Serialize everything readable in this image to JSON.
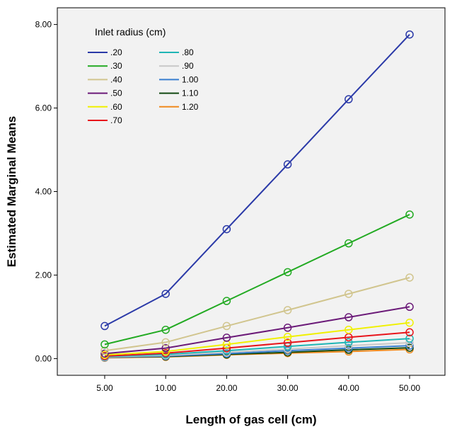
{
  "chart_data": {
    "type": "line",
    "xlabel": "Length of gas cell (cm)",
    "ylabel": "Estimated Marginal Means",
    "categories": [
      "5.00",
      "10.00",
      "20.00",
      "30.00",
      "40.00",
      "50.00"
    ],
    "ylim": [
      -0.4,
      8.4
    ],
    "yticks": [
      "0.00",
      "2.00",
      "4.00",
      "6.00",
      "8.00"
    ],
    "ytick_values": [
      0,
      2,
      4,
      6,
      8
    ],
    "legend_title": "Inlet radius (cm)",
    "legend_position": "top-left",
    "grid": false,
    "marker": "open-circle",
    "background": "#f2f2f2",
    "series": [
      {
        "name": ".20",
        "color": "#2b3aa8",
        "values": [
          0.78,
          1.55,
          3.1,
          4.65,
          6.21,
          7.76
        ]
      },
      {
        "name": ".30",
        "color": "#22aa22",
        "values": [
          0.34,
          0.69,
          1.38,
          2.07,
          2.76,
          3.45
        ]
      },
      {
        "name": ".40",
        "color": "#d1c58e",
        "values": [
          0.19,
          0.39,
          0.78,
          1.16,
          1.55,
          1.94
        ]
      },
      {
        "name": ".50",
        "color": "#6b1a78",
        "values": [
          0.12,
          0.25,
          0.5,
          0.74,
          0.99,
          1.24
        ]
      },
      {
        "name": ".60",
        "color": "#f0f000",
        "values": [
          0.09,
          0.17,
          0.34,
          0.52,
          0.69,
          0.86
        ]
      },
      {
        "name": ".70",
        "color": "#e8151b",
        "values": [
          0.06,
          0.13,
          0.25,
          0.38,
          0.51,
          0.63
        ]
      },
      {
        "name": ".80",
        "color": "#20b5b5",
        "values": [
          0.05,
          0.1,
          0.19,
          0.29,
          0.39,
          0.48
        ]
      },
      {
        "name": ".90",
        "color": "#c8c8c8",
        "values": [
          0.04,
          0.08,
          0.15,
          0.23,
          0.31,
          0.38
        ]
      },
      {
        "name": "1.00",
        "color": "#3a7fd0",
        "values": [
          0.03,
          0.06,
          0.12,
          0.19,
          0.25,
          0.31
        ]
      },
      {
        "name": "1.10",
        "color": "#124a12",
        "values": [
          0.03,
          0.05,
          0.1,
          0.15,
          0.21,
          0.26
        ]
      },
      {
        "name": "1.20",
        "color": "#f08a1e",
        "values": [
          0.02,
          0.04,
          0.09,
          0.13,
          0.17,
          0.22
        ]
      }
    ]
  }
}
